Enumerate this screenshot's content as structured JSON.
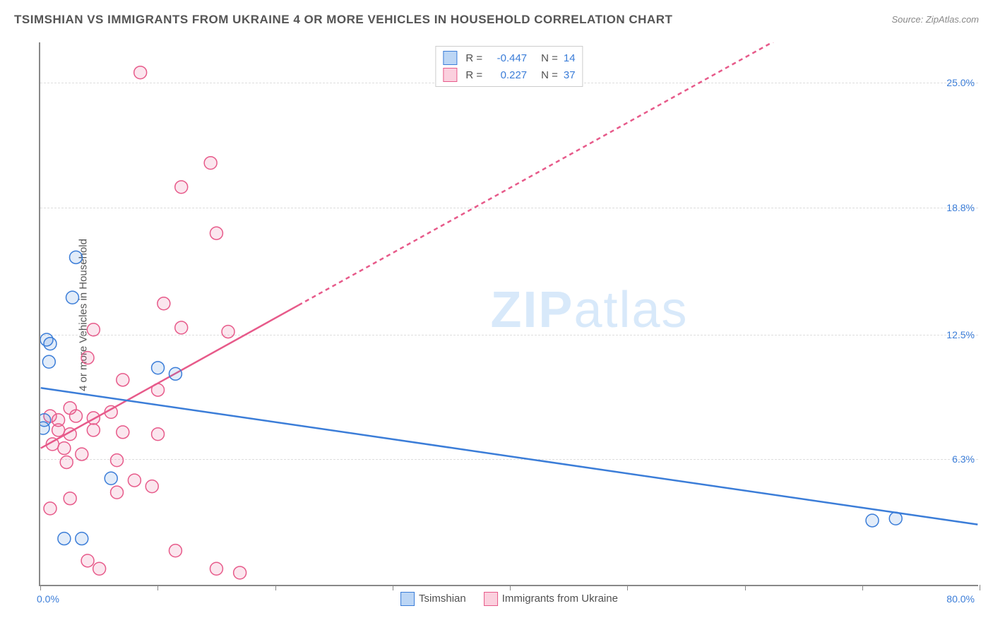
{
  "title": "TSIMSHIAN VS IMMIGRANTS FROM UKRAINE 4 OR MORE VEHICLES IN HOUSEHOLD CORRELATION CHART",
  "source": "Source: ZipAtlas.com",
  "y_axis_label": "4 or more Vehicles in Household",
  "watermark_bold": "ZIP",
  "watermark_rest": "atlas",
  "chart": {
    "type": "scatter",
    "background_color": "#ffffff",
    "grid_color": "#dddddd",
    "axis_color": "#888888",
    "marker_radius": 9,
    "marker_stroke_width": 1.5,
    "marker_fill_opacity": 0.15,
    "line_width": 2.5,
    "xlim": [
      0,
      80
    ],
    "ylim": [
      0,
      27
    ],
    "yticks": [
      {
        "v": 6.3,
        "label": "6.3%"
      },
      {
        "v": 12.5,
        "label": "12.5%"
      },
      {
        "v": 18.8,
        "label": "18.8%"
      },
      {
        "v": 25.0,
        "label": "25.0%"
      }
    ],
    "xticks": [
      0,
      10,
      20,
      30,
      40,
      50,
      60,
      70,
      80
    ],
    "x_origin_label": "0.0%",
    "x_max_label": "80.0%",
    "series": [
      {
        "name": "Tsimshian",
        "color": "#3b7dd8",
        "fill": "#bcd6f5",
        "R": "-0.447",
        "N": "14",
        "trend": {
          "x1": 0,
          "y1": 9.8,
          "x2": 80,
          "y2": 3.0,
          "dash": false
        },
        "points": [
          [
            0.5,
            12.2
          ],
          [
            0.8,
            12.0
          ],
          [
            0.7,
            11.1
          ],
          [
            0.3,
            8.2
          ],
          [
            0.2,
            7.8
          ],
          [
            3.0,
            16.3
          ],
          [
            2.7,
            14.3
          ],
          [
            10.0,
            10.8
          ],
          [
            11.5,
            10.5
          ],
          [
            2.0,
            2.3
          ],
          [
            3.5,
            2.3
          ],
          [
            6.0,
            5.3
          ],
          [
            71.0,
            3.2
          ],
          [
            73.0,
            3.3
          ]
        ]
      },
      {
        "name": "Immigrants from Ukraine",
        "color": "#e75a8a",
        "fill": "#fbd0de",
        "R": "0.227",
        "N": "37",
        "trend": {
          "x1": 0,
          "y1": 6.8,
          "x2": 64,
          "y2": 27.5,
          "dash_split": 22
        },
        "points": [
          [
            8.5,
            25.5
          ],
          [
            14.5,
            21.0
          ],
          [
            12.0,
            19.8
          ],
          [
            15.0,
            17.5
          ],
          [
            10.5,
            14.0
          ],
          [
            12.0,
            12.8
          ],
          [
            16.0,
            12.6
          ],
          [
            4.5,
            12.7
          ],
          [
            4.0,
            11.3
          ],
          [
            7.0,
            10.2
          ],
          [
            10.0,
            9.7
          ],
          [
            6.0,
            8.6
          ],
          [
            4.5,
            8.3
          ],
          [
            3.0,
            8.4
          ],
          [
            2.5,
            8.8
          ],
          [
            1.5,
            8.2
          ],
          [
            0.8,
            8.4
          ],
          [
            1.5,
            7.7
          ],
          [
            2.5,
            7.5
          ],
          [
            4.5,
            7.7
          ],
          [
            7.0,
            7.6
          ],
          [
            10.0,
            7.5
          ],
          [
            1.0,
            7.0
          ],
          [
            2.0,
            6.8
          ],
          [
            3.5,
            6.5
          ],
          [
            6.5,
            6.2
          ],
          [
            2.2,
            6.1
          ],
          [
            8.0,
            5.2
          ],
          [
            9.5,
            4.9
          ],
          [
            6.5,
            4.6
          ],
          [
            0.8,
            3.8
          ],
          [
            11.5,
            1.7
          ],
          [
            15.0,
            0.8
          ],
          [
            17.0,
            0.6
          ],
          [
            5.0,
            0.8
          ],
          [
            4.0,
            1.2
          ],
          [
            2.5,
            4.3
          ]
        ]
      }
    ]
  }
}
